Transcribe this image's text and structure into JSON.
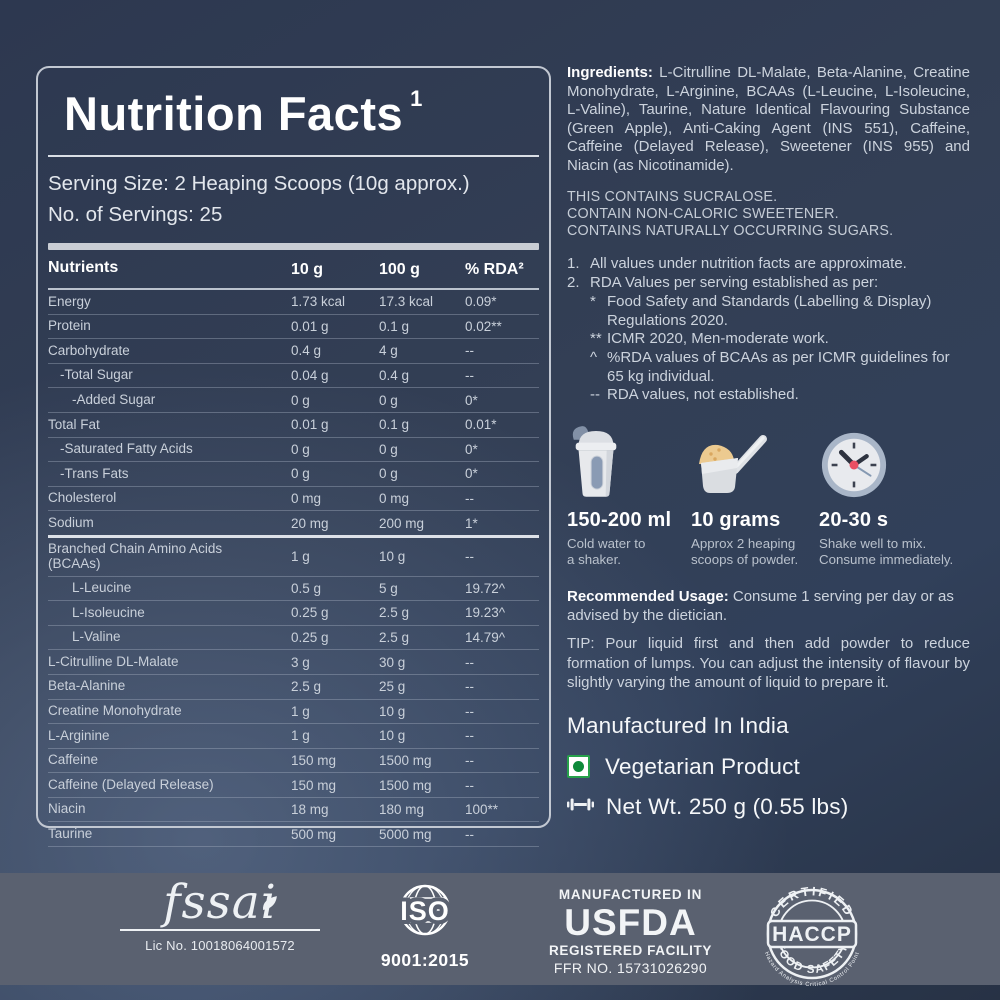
{
  "colors": {
    "background_navy": "#313d53",
    "footer_gray": "#5a6170",
    "panel_border": "#c2c8d2",
    "veg_green": "#1d9b47",
    "clock_red": "#e94f63",
    "powder_tan": "#ecca90",
    "text_light": "#ccd3dd"
  },
  "panel": {
    "title": "Nutrition Facts",
    "title_sup": "1",
    "serving_size": "Serving Size: 2 Heaping Scoops (10g approx.)",
    "servings": "No. of Servings: 25",
    "table": {
      "headers": [
        "Nutrients",
        "10 g",
        "100 g",
        "% RDA²"
      ],
      "rows": [
        {
          "name": "Energy",
          "v10": "1.73 kcal",
          "v100": "17.3 kcal",
          "rda": "0.09*",
          "indent": 0
        },
        {
          "name": "Protein",
          "v10": "0.01 g",
          "v100": "0.1 g",
          "rda": "0.02**",
          "indent": 0
        },
        {
          "name": "Carbohydrate",
          "v10": "0.4 g",
          "v100": "4 g",
          "rda": "--",
          "indent": 0
        },
        {
          "name": "-Total Sugar",
          "v10": "0.04 g",
          "v100": "0.4 g",
          "rda": "--",
          "indent": 1
        },
        {
          "name": "-Added Sugar",
          "v10": "0 g",
          "v100": "0 g",
          "rda": "0*",
          "indent": 2
        },
        {
          "name": "Total Fat",
          "v10": "0.01 g",
          "v100": "0.1 g",
          "rda": "0.01*",
          "indent": 0
        },
        {
          "name": "-Saturated Fatty Acids",
          "v10": "0 g",
          "v100": "0 g",
          "rda": "0*",
          "indent": 1
        },
        {
          "name": "-Trans Fats",
          "v10": "0 g",
          "v100": "0 g",
          "rda": "0*",
          "indent": 1
        },
        {
          "name": "Cholesterol",
          "v10": "0 mg",
          "v100": "0 mg",
          "rda": "--",
          "indent": 0
        },
        {
          "name": "Sodium",
          "v10": "20 mg",
          "v100": "200 mg",
          "rda": "1*",
          "indent": 0,
          "thick_after": true
        },
        {
          "name": "Branched Chain Amino Acids\n(BCAAs)",
          "v10": "1 g",
          "v100": "10 g",
          "rda": "--",
          "indent": 0
        },
        {
          "name": "L-Leucine",
          "v10": "0.5 g",
          "v100": "5 g",
          "rda": "19.72^",
          "indent": 2
        },
        {
          "name": "L-Isoleucine",
          "v10": "0.25 g",
          "v100": "2.5 g",
          "rda": "19.23^",
          "indent": 2
        },
        {
          "name": "L-Valine",
          "v10": "0.25 g",
          "v100": "2.5 g",
          "rda": "14.79^",
          "indent": 2
        },
        {
          "name": "L-Citrulline DL-Malate",
          "v10": "3 g",
          "v100": "30 g",
          "rda": "--",
          "indent": 0
        },
        {
          "name": "Beta-Alanine",
          "v10": "2.5 g",
          "v100": "25 g",
          "rda": "--",
          "indent": 0
        },
        {
          "name": "Creatine Monohydrate",
          "v10": "1 g",
          "v100": "10 g",
          "rda": "--",
          "indent": 0
        },
        {
          "name": "L-Arginine",
          "v10": "1 g",
          "v100": "10 g",
          "rda": "--",
          "indent": 0
        },
        {
          "name": "Caffeine",
          "v10": "150 mg",
          "v100": "1500 mg",
          "rda": "--",
          "indent": 0
        },
        {
          "name": "Caffeine (Delayed Release)",
          "v10": "150 mg",
          "v100": "1500 mg",
          "rda": "--",
          "indent": 0
        },
        {
          "name": "Niacin",
          "v10": "18 mg",
          "v100": "180 mg",
          "rda": "100**",
          "indent": 0
        },
        {
          "name": "Taurine",
          "v10": "500 mg",
          "v100": "5000 mg",
          "rda": "--",
          "indent": 0
        }
      ]
    }
  },
  "right": {
    "ingredients_label": "Ingredients:",
    "ingredients_text": " L-Citrulline DL-Malate, Beta-Alanine, Creatine Monohydrate, L-Arginine, BCAAs (L-Leucine, L-Isoleucine, L-Valine), Taurine, Nature Identical Flavouring Substance (Green Apple), Anti-Caking Agent (INS 551), Caffeine, Caffeine (Delayed Release), Sweetener (INS 955) and Niacin (as Nicotinamide).",
    "contains_lines": [
      "THIS CONTAINS SUCRALOSE.",
      "CONTAIN NON-CALORIC SWEETENER.",
      "CONTAINS NATURALLY OCCURRING SUGARS."
    ],
    "notes": [
      {
        "num": "1.",
        "text": "All values under nutrition facts are approximate."
      },
      {
        "num": "2.",
        "text": "RDA Values per serving established as per:"
      }
    ],
    "subnotes": [
      {
        "marker": "*",
        "text": "Food Safety and Standards (Labelling & Display) Regulations 2020."
      },
      {
        "marker": "**",
        "text": "ICMR 2020, Men-moderate work."
      },
      {
        "marker": "^",
        "text": "%RDA values of BCAAs as per ICMR guidelines for 65 kg individual."
      },
      {
        "marker": "--",
        "text": "RDA values, not established."
      }
    ],
    "usage": [
      {
        "icon": "shaker-icon",
        "value": "150-200 ml",
        "desc": "Cold water to\na shaker."
      },
      {
        "icon": "scoop-icon",
        "value": "10 grams",
        "desc": "Approx 2 heaping\nscoops of powder."
      },
      {
        "icon": "clock-icon",
        "value": "20-30 s",
        "desc": "Shake well to mix.\nConsume immediately."
      }
    ],
    "recommended_label": "Recommended Usage:",
    "recommended_text": " Consume 1 serving per day or as advised by the dietician.",
    "tip_text": "TIP: Pour liquid first and then add powder to reduce formation of lumps. You can adjust the intensity of flavour by slightly varying the amount of liquid to prepare it.",
    "manufactured": "Manufactured In India",
    "vegetarian": "Vegetarian Product",
    "net_weight": "Net Wt. 250 g (0.55 lbs)"
  },
  "footer": {
    "fssai": {
      "name": "fssai",
      "license": "Lic No. 10018064001572"
    },
    "iso": {
      "name": "ISO",
      "standard": "9001:2015"
    },
    "usfda": {
      "line1": "MANUFACTURED IN",
      "line2": "USFDA",
      "line3": "REGISTERED FACILITY",
      "line4": "FFR NO. 15731026290"
    },
    "haccp": {
      "top": "CERTIFIED",
      "center": "HACCP",
      "bottom": "FOOD SAFETY",
      "ring": "Hazard Analysis Critical Control Point"
    }
  }
}
